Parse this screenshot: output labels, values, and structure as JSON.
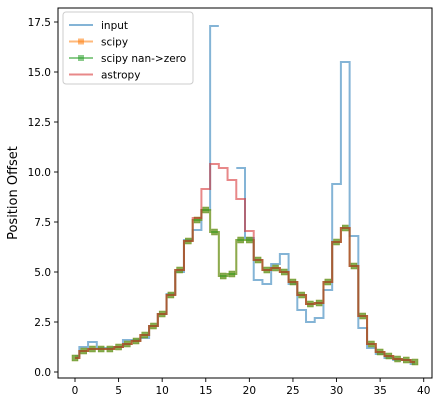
{
  "chart_data": {
    "type": "line",
    "drawstyle": "steps-mid",
    "title": "",
    "xlabel": "",
    "ylabel": "Position Offset",
    "xlim": [
      -1.95,
      40.95
    ],
    "ylim": [
      -0.3,
      18.2
    ],
    "xticks": [
      0,
      5,
      10,
      15,
      20,
      25,
      30,
      35,
      40
    ],
    "xtick_labels": [
      "0",
      "5",
      "10",
      "15",
      "20",
      "25",
      "30",
      "35",
      "40"
    ],
    "yticks": [
      0,
      2.5,
      5,
      7.5,
      10,
      12.5,
      15,
      17.5
    ],
    "ytick_labels": [
      "0.0",
      "2.5",
      "5.0",
      "7.5",
      "10.0",
      "12.5",
      "15.0",
      "17.5"
    ],
    "grid": false,
    "legend": "top-left",
    "x": [
      0,
      1,
      2,
      3,
      4,
      5,
      6,
      7,
      8,
      9,
      10,
      11,
      12,
      13,
      14,
      15,
      16,
      17,
      18,
      19,
      20,
      21,
      22,
      23,
      24,
      25,
      26,
      27,
      28,
      29,
      30,
      31,
      32,
      33,
      34,
      35,
      36,
      37,
      38,
      39
    ],
    "series": [
      {
        "name": "input",
        "color": "#1f77b4",
        "marker": "none",
        "values": [
          0.8,
          1.25,
          1.5,
          1.2,
          1.2,
          1.25,
          1.6,
          1.6,
          1.7,
          2.3,
          2.9,
          3.9,
          5.0,
          6.6,
          7.1,
          8.1,
          17.3,
          null,
          null,
          10.2,
          6.7,
          4.6,
          4.4,
          5.4,
          5.9,
          4.4,
          3.1,
          2.5,
          2.7,
          4.1,
          9.4,
          15.5,
          6.8,
          2.2,
          1.2,
          0.9,
          0.7,
          0.6,
          0.6,
          0.4
        ]
      },
      {
        "name": "scipy",
        "color": "#ff7f0e",
        "marker": "square",
        "values": [
          0.7,
          1.05,
          1.15,
          1.15,
          1.15,
          1.25,
          1.4,
          1.55,
          1.85,
          2.3,
          2.9,
          3.85,
          5.1,
          6.55,
          7.6,
          8.1,
          7.0,
          4.8,
          4.9,
          6.6,
          6.6,
          5.6,
          5.1,
          5.2,
          5.0,
          4.5,
          3.85,
          3.4,
          3.45,
          4.5,
          6.5,
          7.2,
          5.3,
          2.8,
          1.4,
          1.0,
          0.8,
          0.65,
          0.6,
          0.5
        ]
      },
      {
        "name": "scipy nan->zero",
        "color": "#2ca02c",
        "marker": "square",
        "values": [
          0.7,
          1.05,
          1.15,
          1.15,
          1.15,
          1.25,
          1.4,
          1.55,
          1.85,
          2.3,
          2.9,
          3.85,
          5.1,
          6.55,
          7.6,
          8.1,
          7.0,
          4.8,
          4.9,
          6.6,
          6.6,
          5.6,
          5.1,
          5.2,
          5.0,
          4.5,
          3.85,
          3.4,
          3.45,
          4.5,
          6.5,
          7.2,
          5.3,
          2.8,
          1.4,
          1.0,
          0.8,
          0.65,
          0.6,
          0.5
        ]
      },
      {
        "name": "astropy",
        "color": "#d62728",
        "marker": "none",
        "values": [
          0.7,
          1.05,
          1.15,
          1.15,
          1.15,
          1.25,
          1.4,
          1.55,
          1.85,
          2.3,
          2.9,
          3.85,
          5.1,
          6.55,
          7.7,
          9.15,
          10.4,
          10.2,
          9.6,
          8.65,
          7.05,
          5.6,
          5.1,
          5.2,
          5.0,
          4.5,
          3.85,
          3.4,
          3.45,
          4.5,
          6.5,
          7.2,
          5.3,
          2.8,
          1.4,
          1.0,
          0.8,
          0.65,
          0.6,
          0.5
        ]
      }
    ]
  }
}
